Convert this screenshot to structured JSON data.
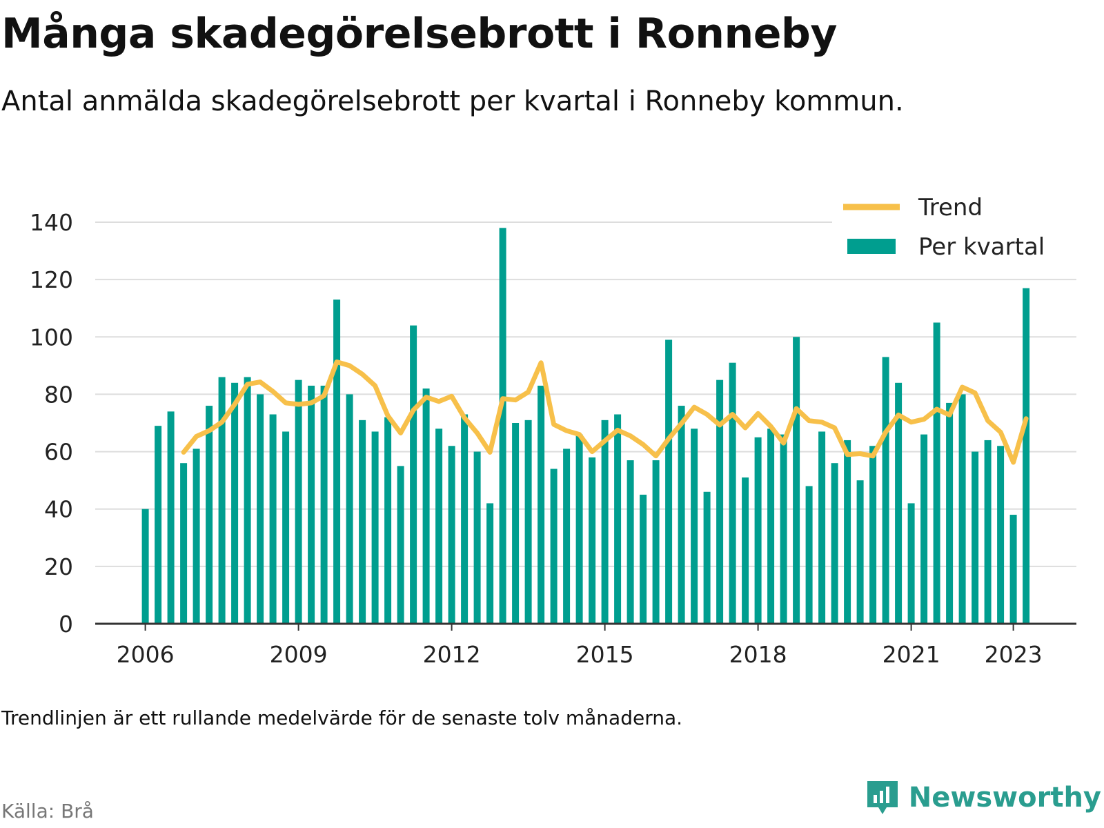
{
  "title": "Många skadegörelsebrott i Ronneby",
  "subtitle": "Antal anmälda skadegörelsebrott per kvartal i Ronneby kommun.",
  "footnote": "Trendlinjen är ett rullande medelvärde för de senaste tolv månaderna.",
  "source": "Källa: Brå",
  "brand": {
    "name": "Newsworthy",
    "logo_icon": "newsworthy-logo-icon"
  },
  "colors": {
    "bar": "#009e8f",
    "trend": "#f7c04a",
    "grid": "#dddddd",
    "axis": "#333333",
    "brand": "#2a9d8f"
  },
  "chart_data": {
    "type": "bar",
    "x_unit": "quarter",
    "x_start": "2006 Q1",
    "x_end": "2023 Q2",
    "ylim": [
      0,
      140
    ],
    "y_ticks": [
      0,
      20,
      40,
      60,
      80,
      100,
      120,
      140
    ],
    "x_tick_labels": [
      "2006",
      "2009",
      "2012",
      "2015",
      "2018",
      "2021",
      "2023"
    ],
    "grid": true,
    "legend": {
      "position": "top-right",
      "entries": [
        "Trend",
        "Per kvartal"
      ]
    },
    "series": [
      {
        "name": "Per kvartal",
        "type": "bar",
        "values": [
          40,
          69,
          74,
          56,
          61,
          76,
          86,
          84,
          86,
          80,
          73,
          67,
          85,
          83,
          83,
          113,
          80,
          71,
          67,
          72,
          55,
          104,
          82,
          68,
          62,
          73,
          60,
          42,
          138,
          70,
          71,
          83,
          54,
          61,
          66,
          58,
          71,
          73,
          57,
          45,
          57,
          99,
          76,
          68,
          46,
          85,
          91,
          51,
          65,
          68,
          66,
          100,
          48,
          67,
          56,
          64,
          50,
          62,
          93,
          84,
          42,
          66,
          105,
          77,
          80,
          60,
          64,
          62,
          38,
          117
        ]
      },
      {
        "name": "Trend",
        "type": "line",
        "start_quarter": "2006 Q4",
        "values": [
          59.8,
          65.3,
          67.3,
          70.3,
          76.5,
          83.5,
          84.3,
          81.0,
          77.0,
          76.5,
          77.0,
          79.5,
          91.3,
          90.0,
          87.0,
          83.0,
          72.5,
          66.5,
          74.5,
          79.0,
          77.5,
          79.3,
          71.8,
          66.5,
          59.8,
          78.5,
          78.0,
          80.8,
          91.0,
          69.5,
          67.3,
          66.0,
          60.0,
          63.8,
          67.5,
          65.5,
          62.5,
          58.5,
          64.5,
          69.8,
          75.5,
          73.0,
          69.3,
          73.0,
          68.3,
          73.3,
          68.8,
          63.0,
          75.0,
          70.8,
          70.3,
          68.3,
          59.0,
          59.3,
          58.5,
          66.8,
          72.8,
          70.3,
          71.3,
          74.8,
          72.8,
          82.5,
          80.5,
          70.8,
          66.8,
          56.3,
          71.5
        ]
      }
    ]
  }
}
